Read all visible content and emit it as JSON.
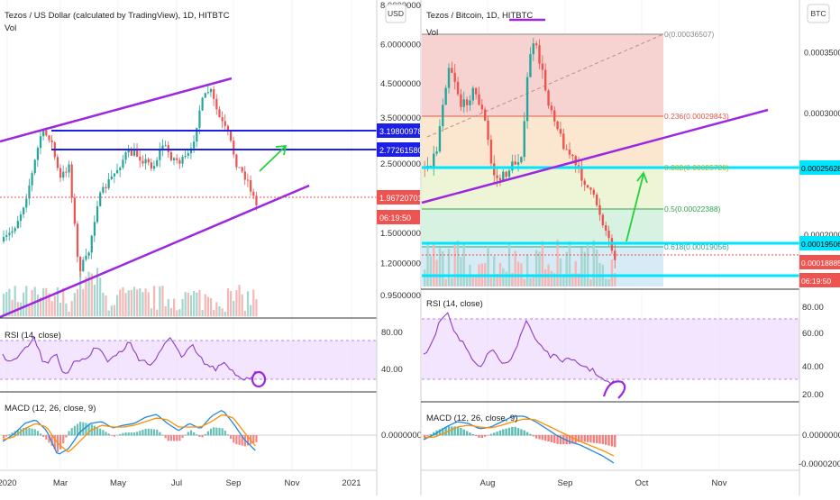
{
  "left": {
    "title": "Tezos / US Dollar (calculated by TradingView), 1D, HITBTC",
    "vol_label": "Vol",
    "currency": "USD",
    "price_ticks": [
      "8.00000000",
      "6.00000000",
      "4.50000000",
      "3.50000000",
      "2.50000000",
      "1.50000000",
      "1.20000000",
      "0.95000000"
    ],
    "price_ticks_values": [
      8.0,
      6.0,
      4.5,
      3.5,
      2.5,
      1.5,
      1.2,
      0.95
    ],
    "badges": [
      {
        "text": "3.19800978",
        "color": "#1d1fe6"
      },
      {
        "text": "2.77261580",
        "color": "#1d1fe6"
      },
      {
        "text": "1.96720701",
        "color": "#ef5350"
      },
      {
        "text": "06:19:50",
        "color": "#ef5350"
      }
    ],
    "rsi_label": "RSI (14, close)",
    "rsi_ticks": [
      "80.00",
      "40.00"
    ],
    "macd_label": "MACD (12, 26, close, 9)",
    "macd_ticks": [
      "0.00000000"
    ],
    "time_labels": [
      "2020",
      "Mar",
      "May",
      "Jul",
      "Sep",
      "Nov",
      "2021"
    ]
  },
  "right": {
    "title": "Tezos / Bitcoin, 1D, HITBTC",
    "vol_label": "Vol",
    "currency": "BTC",
    "price_ticks": [
      "0.00035000",
      "0.00030000",
      "0.00020000"
    ],
    "price_ticks_values": [
      0.00035,
      0.0003,
      0.0002
    ],
    "fib_labels": [
      "0(0.00036507)",
      "0.236(0.00029843)",
      "0.382(0.00025720)",
      "0.5(0.00022388)",
      "0.618(0.00019056)"
    ],
    "fib_values": [
      0.00036507,
      0.00029843,
      0.0002572,
      0.00022388,
      0.00019056
    ],
    "badges": [
      {
        "text": "0.00025628",
        "color": "#00e5ff"
      },
      {
        "text": "0.00019506",
        "color": "#00e5ff"
      },
      {
        "text": "0.00018885",
        "color": "#ef5350"
      },
      {
        "text": "06:19:50",
        "color": "#ef5350"
      }
    ],
    "rsi_label": "RSI (14, close)",
    "rsi_ticks": [
      "80.00",
      "60.00",
      "40.00",
      "20.00"
    ],
    "macd_label": "MACD (12, 26, close, 9)",
    "macd_ticks": [
      "0.00000000",
      "-0.00002000"
    ],
    "time_labels": [
      "Aug",
      "Sep",
      "Oct",
      "Nov"
    ]
  },
  "chart_data": [
    {
      "type": "candlestick",
      "title": "Tezos / US Dollar (calculated by TradingView), 1D, HITBTC",
      "ylabel": "USD",
      "ylim": [
        0.95,
        8.0
      ],
      "y_scale": "log",
      "x_range": [
        "2020-01",
        "2021-01"
      ],
      "levels": [
        3.19800978,
        2.7726158
      ],
      "last_price": 1.96720701,
      "approx_close": [
        {
          "x": "2020-01",
          "y": 1.55
        },
        {
          "x": "2020-02",
          "y": 2.2
        },
        {
          "x": "2020-03",
          "y": 2.8
        },
        {
          "x": "2020-03",
          "y": 1.6
        },
        {
          "x": "2020-04",
          "y": 2.2
        },
        {
          "x": "2020-05",
          "y": 2.8
        },
        {
          "x": "2020-06",
          "y": 2.7
        },
        {
          "x": "2020-07",
          "y": 2.5
        },
        {
          "x": "2020-08",
          "y": 4.0
        },
        {
          "x": "2020-09",
          "y": 2.5
        },
        {
          "x": "2020-09",
          "y": 1.97
        }
      ]
    },
    {
      "type": "candlestick",
      "title": "Tezos / Bitcoin, 1D, HITBTC",
      "ylabel": "BTC",
      "ylim": [
        0.00016,
        0.0004
      ],
      "fib_levels": [
        0.00036507,
        0.00029843,
        0.0002572,
        0.00022388,
        0.00019056
      ],
      "levels": [
        0.00025628,
        0.00019506
      ],
      "last_price": 0.00018885,
      "approx_close": [
        {
          "x": "2020-07",
          "y": 0.00026
        },
        {
          "x": "2020-07",
          "y": 0.00031
        },
        {
          "x": "2020-08",
          "y": 0.00026
        },
        {
          "x": "2020-08",
          "y": 0.00036
        },
        {
          "x": "2020-09",
          "y": 0.00029
        },
        {
          "x": "2020-09",
          "y": 0.00025
        },
        {
          "x": "2020-09",
          "y": 0.000189
        }
      ]
    }
  ]
}
